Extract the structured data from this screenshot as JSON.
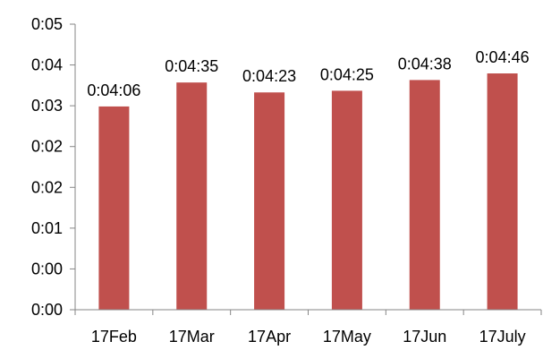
{
  "chart_data": {
    "type": "bar",
    "categories": [
      "17Feb",
      "17Mar",
      "17Apr",
      "17May",
      "17Jun",
      "17July"
    ],
    "values_seconds": [
      246,
      275,
      263,
      265,
      278,
      286
    ],
    "data_labels": [
      "0:04:06",
      "0:04:35",
      "0:04:23",
      "0:04:25",
      "0:04:38",
      "0:04:46"
    ],
    "y_tick_labels": [
      "0:00",
      "0:00",
      "0:01",
      "0:02",
      "0:02",
      "0:03",
      "0:04",
      "0:05"
    ],
    "ylim_seconds": [
      0,
      345.6
    ],
    "bar_color": "#c0504d",
    "axis_color": "#868686",
    "grid": false,
    "legend": "none",
    "title": "",
    "xlabel": "",
    "ylabel": ""
  }
}
